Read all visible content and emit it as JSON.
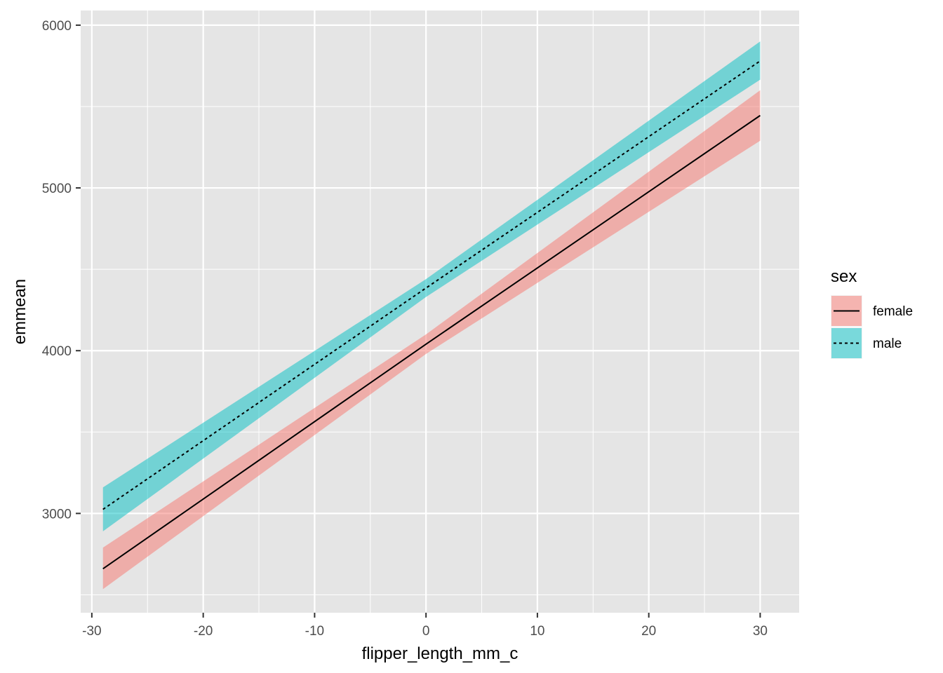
{
  "chart_data": {
    "type": "line",
    "xlabel": "flipper_length_mm_c",
    "ylabel": "emmean",
    "xlim": [
      -31,
      33.5
    ],
    "ylim": [
      2390,
      6090
    ],
    "x_ticks": [
      -30,
      -20,
      -10,
      0,
      10,
      20,
      30
    ],
    "x_tick_labels": [
      "-30",
      "-20",
      "-10",
      "0",
      "10",
      "20",
      "30"
    ],
    "y_ticks": [
      3000,
      4000,
      5000,
      6000
    ],
    "y_tick_labels": [
      "3000",
      "4000",
      "5000",
      "6000"
    ],
    "grid": true,
    "legend": {
      "title": "sex",
      "placement": "right"
    },
    "series": [
      {
        "name": "female",
        "linetype": "solid",
        "fill": "#F8766D",
        "x": [
          -29,
          0,
          30
        ],
        "y": [
          2660,
          4040,
          5445
        ],
        "lower": [
          2535,
          3980,
          5290
        ],
        "upper": [
          2790,
          4100,
          5600
        ]
      },
      {
        "name": "male",
        "linetype": "dashed",
        "fill": "#00BFC4",
        "x": [
          -29,
          0,
          30
        ],
        "y": [
          3025,
          4385,
          5780
        ],
        "lower": [
          2890,
          4330,
          5665
        ],
        "upper": [
          3160,
          4440,
          5900
        ]
      }
    ]
  },
  "colors": {
    "panel_background": "#E5E5E5",
    "grid_major": "#FFFFFF",
    "line": "#000000"
  }
}
